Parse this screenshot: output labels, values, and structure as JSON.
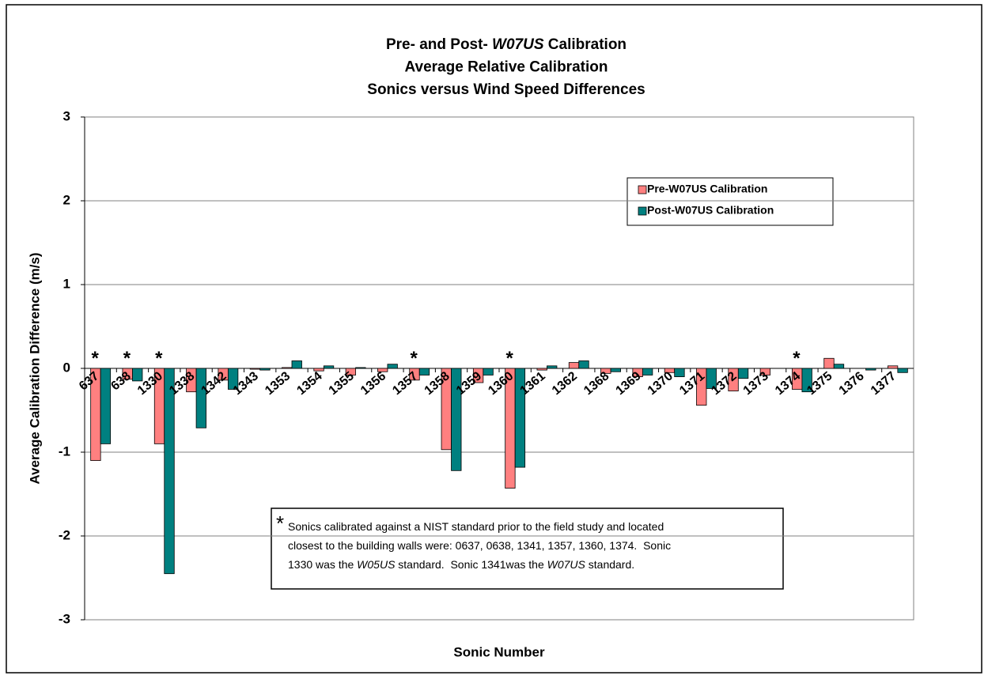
{
  "chart_data": {
    "type": "bar",
    "title": [
      [
        "Pre- and Post- ",
        {
          "text": "W07US",
          "italic": true
        },
        " Calibration"
      ],
      [
        "Average Relative Calibration"
      ],
      [
        "Sonics versus Wind Speed Differences"
      ]
    ],
    "y_label": "Average Calibration Difference (m/s)",
    "x_label": "Sonic Number",
    "categories": [
      "637",
      "638",
      "1330",
      "1338",
      "1342",
      "1343",
      "1353",
      "1354",
      "1355",
      "1356",
      "1357",
      "1358",
      "1359",
      "1360",
      "1361",
      "1362",
      "1368",
      "1369",
      "1370",
      "1371",
      "1372",
      "1373",
      "1374",
      "1375",
      "1376",
      "1377"
    ],
    "series": [
      {
        "name": "Pre-W07US Calibration",
        "color": "#ff8080",
        "values": [
          -1.1,
          -0.13,
          -0.9,
          -0.28,
          -0.14,
          -0.01,
          0.01,
          -0.03,
          -0.08,
          -0.04,
          -0.14,
          -0.97,
          -0.17,
          -1.43,
          -0.02,
          0.07,
          -0.06,
          -0.1,
          -0.05,
          -0.44,
          -0.27,
          -0.08,
          -0.25,
          0.12,
          0,
          0.03
        ]
      },
      {
        "name": "Post-W07US Calibration",
        "color": "#008080",
        "values": [
          -0.9,
          -0.15,
          -2.45,
          -0.71,
          -0.25,
          -0.02,
          0.09,
          0.03,
          0.01,
          0.05,
          -0.08,
          -1.22,
          -0.08,
          -1.18,
          0.03,
          0.09,
          -0.04,
          -0.08,
          -0.1,
          -0.24,
          -0.12,
          0,
          -0.28,
          0.05,
          -0.02,
          -0.05
        ]
      }
    ],
    "ylim": [
      -3,
      3
    ],
    "yticks": [
      -3,
      -2,
      -1,
      0,
      1,
      2,
      3
    ],
    "grid": true,
    "markers": [
      {
        "category": "637",
        "text": "*"
      },
      {
        "category": "638",
        "text": "*"
      },
      {
        "category": "1330",
        "text": "*"
      },
      {
        "category": "1357",
        "text": "*"
      },
      {
        "category": "1360",
        "text": "*"
      },
      {
        "category": "1374",
        "text": "*"
      }
    ],
    "note": {
      "marker": "*",
      "lines": [
        [
          "Sonics calibrated against a NIST standard prior to the field study and located"
        ],
        [
          "closest to the building walls were: 0637, 0638, 1341, 1357, 1360, 1374.  Sonic"
        ],
        [
          "1330 was the ",
          {
            "text": "W05US",
            "italic": true
          },
          " standard.  Sonic 1341was the ",
          {
            "text": "W07US",
            "italic": true
          },
          " standard."
        ]
      ]
    }
  }
}
